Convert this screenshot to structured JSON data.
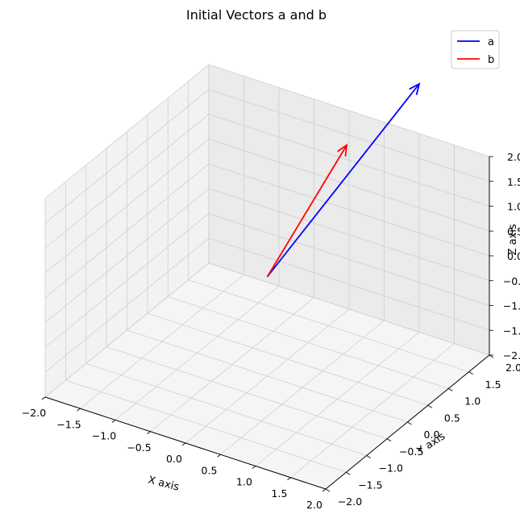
{
  "chart_data": {
    "type": "quiver3d",
    "title": "Initial Vectors a and b",
    "xlabel": "X axis",
    "ylabel": "Y axis",
    "zlabel": "Z axis",
    "xlim": [
      -2,
      2
    ],
    "ylim": [
      -2,
      2
    ],
    "zlim": [
      -2,
      2
    ],
    "xticks": [
      "−2.0",
      "−1.5",
      "−1.0",
      "−0.5",
      "0.0",
      "0.5",
      "1.0",
      "1.5",
      "2.0"
    ],
    "yticks": [
      "−2.0",
      "−1.5",
      "−1.0",
      "−0.5",
      "0.0",
      "0.5",
      "1.0",
      "1.5",
      "2.0"
    ],
    "zticks": [
      "−2.0",
      "−1.5",
      "−1.0",
      "−0.5",
      "0.0",
      "0.5",
      "1.0",
      "1.5",
      "2.0"
    ],
    "grid": true,
    "legend_position": "top-right",
    "series": [
      {
        "name": "a",
        "color": "#0000ff",
        "origin": [
          0,
          0,
          0
        ],
        "vector": [
          1,
          2,
          3
        ]
      },
      {
        "name": "b",
        "color": "#ff0000",
        "origin": [
          0,
          0,
          0
        ],
        "vector": [
          0.9,
          0.4,
          2.8
        ]
      }
    ]
  }
}
